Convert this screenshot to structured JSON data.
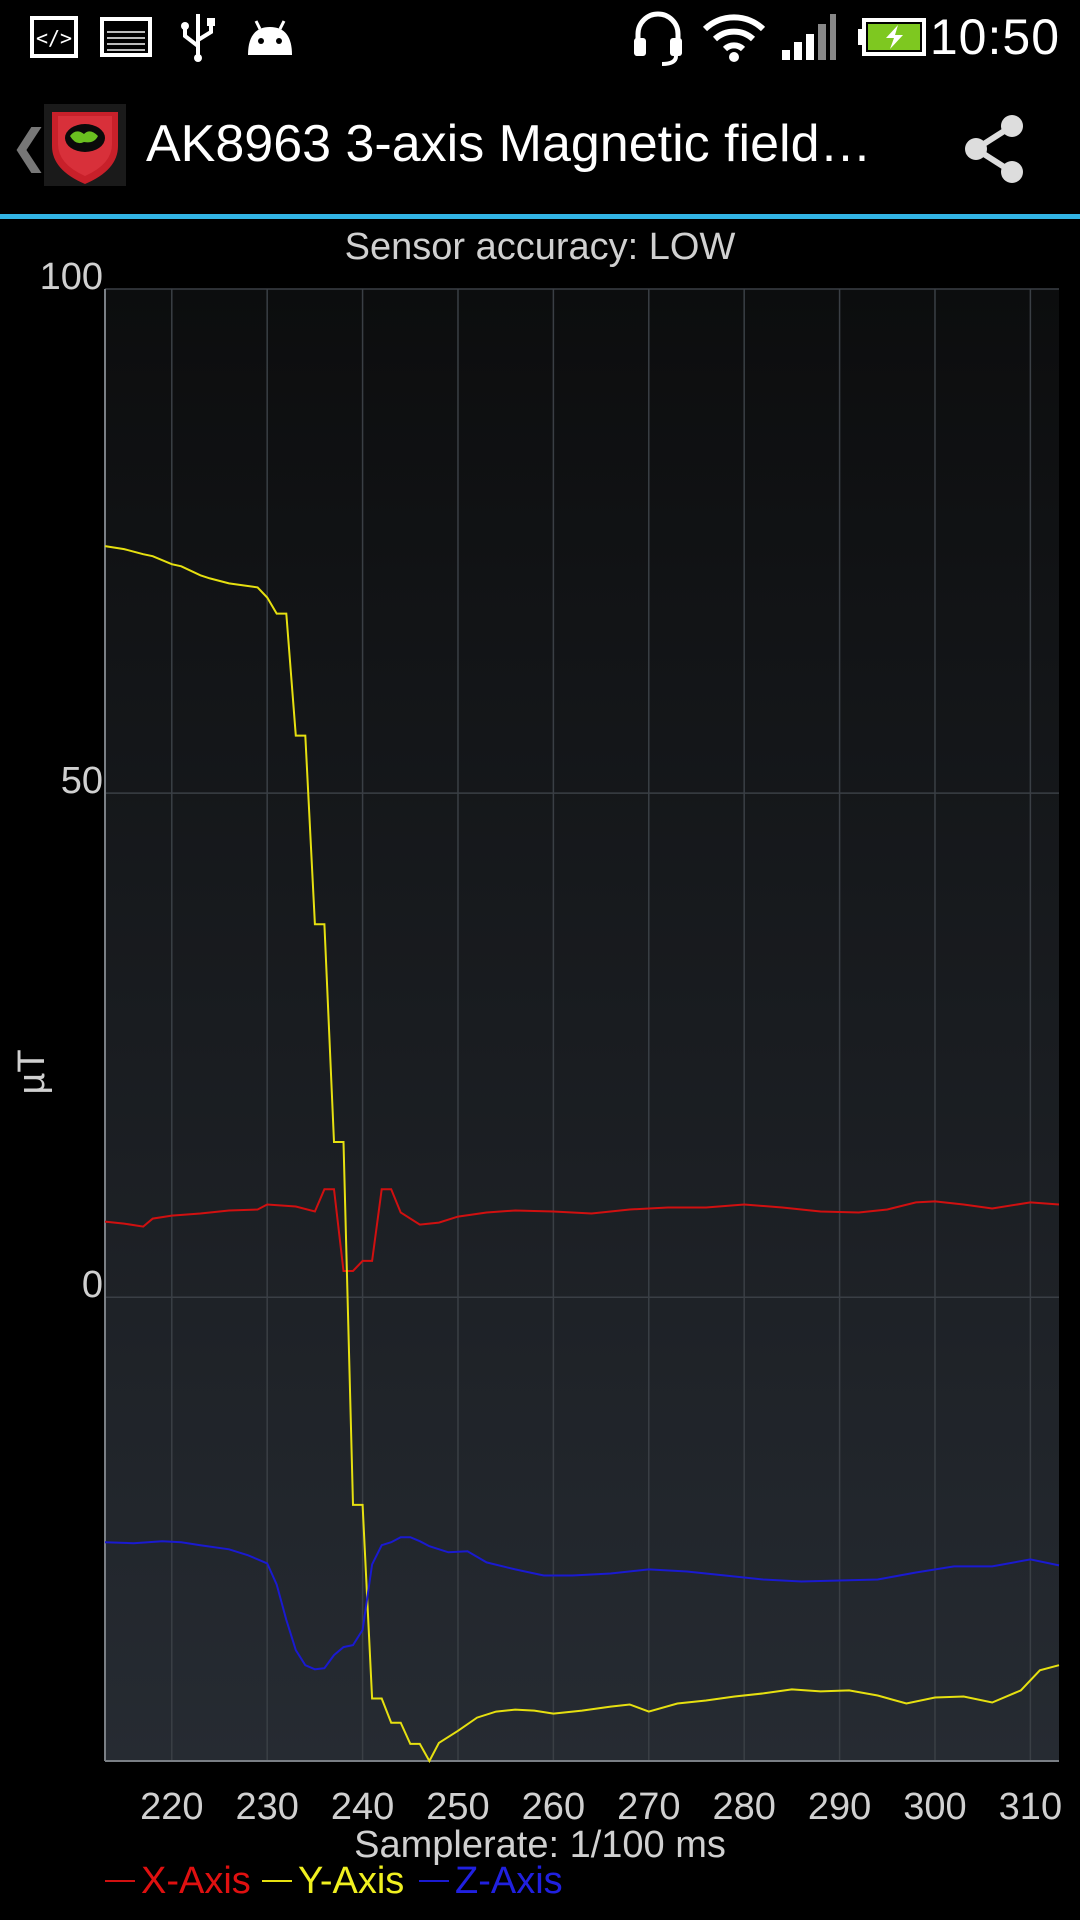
{
  "status_bar": {
    "time": "10:50",
    "icons": [
      "code-icon",
      "image-icon",
      "usb-icon",
      "android-icon",
      "headset-icon",
      "wifi-icon",
      "signal-icon",
      "battery-charging-icon"
    ]
  },
  "action_bar": {
    "title": "AK8963 3-axis Magnetic field…",
    "up_icon": "chevron-left-icon",
    "app_icon": "app-shield-icon",
    "share_icon": "share-icon"
  },
  "chart_data": {
    "type": "line",
    "title": "Sensor accuracy: LOW",
    "xlabel": "Samplerate: 1/100 ms",
    "ylabel": "µT",
    "xlim": [
      213,
      313
    ],
    "ylim": [
      -46,
      100
    ],
    "y_ticks": [
      "100",
      "50",
      "0"
    ],
    "y_tick_values": [
      100,
      50,
      0
    ],
    "x_ticks": [
      "220",
      "230",
      "240",
      "250",
      "260",
      "270",
      "280",
      "290",
      "300",
      "310"
    ],
    "x_tick_values": [
      220,
      230,
      240,
      250,
      260,
      270,
      280,
      290,
      300,
      310
    ],
    "grid": true,
    "legend_placement": "bottom-left",
    "series": [
      {
        "name": "X-Axis",
        "color": "#d01010",
        "x": [
          213,
          215,
          217,
          218,
          220,
          223,
          226,
          229,
          230,
          233,
          235,
          236,
          237,
          238,
          239,
          240,
          241,
          242,
          243,
          244,
          246,
          248,
          250,
          253,
          256,
          260,
          264,
          268,
          272,
          276,
          280,
          284,
          288,
          292,
          295,
          298,
          300,
          303,
          306,
          310,
          313
        ],
        "y": [
          7.5,
          7.3,
          7.0,
          7.8,
          8.1,
          8.3,
          8.6,
          8.7,
          9.2,
          9.0,
          8.5,
          10.7,
          10.7,
          2.6,
          2.6,
          3.6,
          3.6,
          10.7,
          10.7,
          8.4,
          7.2,
          7.4,
          8.0,
          8.4,
          8.6,
          8.5,
          8.3,
          8.7,
          8.9,
          8.9,
          9.2,
          8.9,
          8.5,
          8.4,
          8.7,
          9.4,
          9.5,
          9.2,
          8.8,
          9.4,
          9.2
        ]
      },
      {
        "name": "Y-Axis",
        "color": "#e6e010",
        "x": [
          213,
          215,
          217,
          218,
          220,
          221,
          223,
          224,
          226,
          229,
          230,
          231,
          232,
          233,
          234,
          235,
          236,
          237,
          238,
          239,
          240,
          241,
          242,
          243,
          244,
          245,
          246,
          247,
          248,
          250,
          252,
          254,
          256,
          258,
          260,
          263,
          266,
          268,
          270,
          273,
          276,
          279,
          282,
          285,
          288,
          291,
          294,
          297,
          300,
          303,
          306,
          309,
          311,
          313
        ],
        "y": [
          74.5,
          74.2,
          73.7,
          73.5,
          72.7,
          72.5,
          71.6,
          71.3,
          70.8,
          70.4,
          69.4,
          67.8,
          67.8,
          55.7,
          55.7,
          37.0,
          37.0,
          15.4,
          15.4,
          -20.6,
          -20.6,
          -39.8,
          -39.8,
          -42.2,
          -42.2,
          -44.3,
          -44.3,
          -46.0,
          -44.2,
          -43.0,
          -41.7,
          -41.1,
          -40.9,
          -41.0,
          -41.3,
          -41.0,
          -40.6,
          -40.4,
          -41.1,
          -40.3,
          -40.0,
          -39.6,
          -39.3,
          -38.9,
          -39.1,
          -39.0,
          -39.5,
          -40.3,
          -39.7,
          -39.6,
          -40.2,
          -39.0,
          -37.0,
          -36.5
        ]
      },
      {
        "name": "Z-Axis",
        "color": "#1a1ad0",
        "x": [
          213,
          216,
          219,
          221,
          223,
          226,
          228,
          230,
          231,
          232,
          233,
          234,
          235,
          236,
          237,
          238,
          239,
          240,
          241,
          242,
          243,
          244,
          245,
          246,
          247,
          249,
          251,
          253,
          256,
          259,
          262,
          266,
          270,
          274,
          278,
          282,
          286,
          290,
          294,
          298,
          302,
          306,
          310,
          313
        ],
        "y": [
          -24.3,
          -24.4,
          -24.2,
          -24.3,
          -24.6,
          -25.0,
          -25.6,
          -26.4,
          -28.5,
          -32.0,
          -35.0,
          -36.5,
          -36.9,
          -36.8,
          -35.5,
          -34.7,
          -34.5,
          -33.0,
          -26.5,
          -24.6,
          -24.3,
          -23.8,
          -23.8,
          -24.2,
          -24.7,
          -25.3,
          -25.2,
          -26.3,
          -27.0,
          -27.6,
          -27.6,
          -27.4,
          -27.0,
          -27.2,
          -27.6,
          -28.0,
          -28.2,
          -28.1,
          -28.0,
          -27.3,
          -26.7,
          -26.7,
          -26.0,
          -26.6
        ]
      }
    ]
  }
}
